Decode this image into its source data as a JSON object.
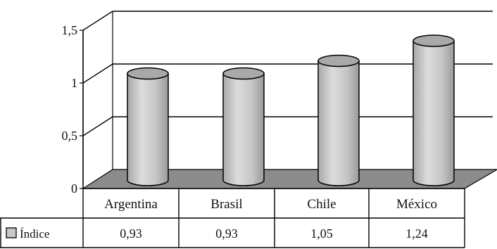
{
  "chart_data": {
    "type": "bar",
    "categories": [
      "Argentina",
      "Brasil",
      "Chile",
      "México"
    ],
    "series": [
      {
        "name": "Índice",
        "values": [
          0.93,
          0.93,
          1.05,
          1.24
        ],
        "value_labels": [
          "0,93",
          "0,93",
          "1,05",
          "1,24"
        ]
      }
    ],
    "yticks": [
      0,
      0.5,
      1,
      1.5
    ],
    "ytick_labels": [
      "0",
      "0,5",
      "1",
      "1,5"
    ],
    "ylim": [
      0,
      1.5
    ],
    "title": "",
    "xlabel": "",
    "ylabel": "",
    "grid": true,
    "legend": "bottom-left, in data table",
    "style": "3d-cylinder",
    "colors": {
      "bar": "#c8c8c8",
      "bar_top": "#a9a9a9",
      "floor": "#8c8c8c",
      "line": "#000000"
    }
  }
}
